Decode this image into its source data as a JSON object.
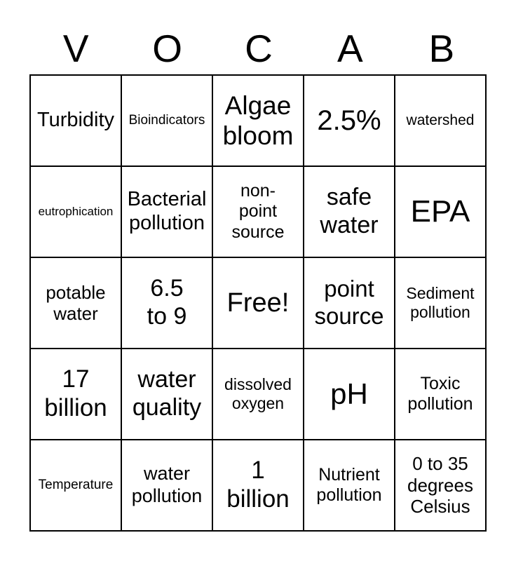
{
  "card": {
    "type": "bingo-card",
    "free_space_index": 12
  },
  "header": {
    "letters": [
      "V",
      "O",
      "C",
      "A",
      "B"
    ]
  },
  "grid": {
    "rows": 5,
    "cols": 5,
    "cells": [
      "Turbidity",
      "Bioindicators",
      "Algae\nbloom",
      "2.5%",
      "watershed",
      "eutrophication",
      "Bacterial\npollution",
      "non-\npoint\nsource",
      "safe\nwater",
      "EPA",
      "potable\nwater",
      "6.5\nto 9",
      "Free!",
      "point\nsource",
      "Sediment\npollution",
      "17\nbillion",
      "water\nquality",
      "dissolved\noxygen",
      "pH",
      "Toxic\npollution",
      "Temperature",
      "water\npollution",
      "1\nbillion",
      "Nutrient\npollution",
      "0 to 35\ndegrees\nCelsius"
    ]
  },
  "colors": {
    "background": "#ffffff",
    "text": "#000000",
    "border": "#000000"
  }
}
